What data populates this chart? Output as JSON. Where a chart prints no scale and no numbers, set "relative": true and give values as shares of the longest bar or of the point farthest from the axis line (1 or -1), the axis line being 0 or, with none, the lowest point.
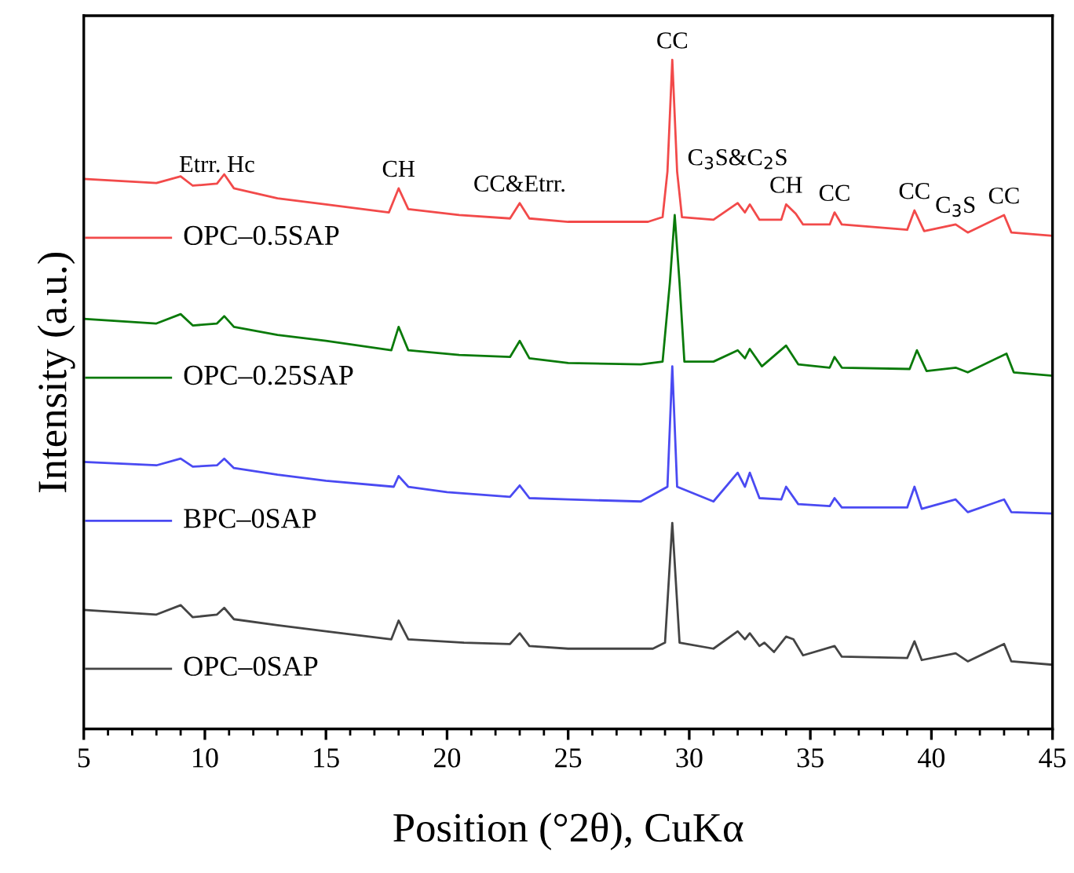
{
  "chart_data": {
    "type": "line",
    "relative": true,
    "xlabel": "Position (°2θ), CuKα",
    "ylabel": "Intensity (a.u.)",
    "xlim": [
      5,
      45
    ],
    "xticks": [
      5,
      10,
      15,
      20,
      25,
      30,
      35,
      40,
      45
    ],
    "grid": false,
    "legend": "left",
    "marker": "none",
    "line_style": "solid",
    "x": [
      5,
      8,
      9,
      9.5,
      10.5,
      10.8,
      11.2,
      13,
      15,
      17.6,
      18,
      18.4,
      20.5,
      22.6,
      23,
      23.4,
      25,
      28.3,
      28.9,
      29.1,
      29.3,
      29.5,
      29.7,
      31,
      32,
      32.3,
      32.5,
      32.9,
      33.8,
      34,
      34.4,
      34.7,
      35.8,
      36,
      36.3,
      39,
      39.3,
      39.7,
      41,
      41.5,
      43,
      43.3,
      45
    ],
    "series": [
      {
        "name": "OPC–0.5SAP",
        "color": "#f24a4a",
        "values": [
          0.822,
          0.816,
          0.826,
          0.812,
          0.815,
          0.829,
          0.808,
          0.793,
          0.784,
          0.772,
          0.808,
          0.777,
          0.768,
          0.763,
          0.786,
          0.763,
          0.758,
          0.758,
          0.765,
          0.833,
          1,
          0.833,
          0.765,
          0.761,
          0.786,
          0.772,
          0.784,
          0.761,
          0.761,
          0.784,
          0.77,
          0.754,
          0.754,
          0.772,
          0.754,
          0.746,
          0.775,
          0.744,
          0.754,
          0.742,
          0.768,
          0.742,
          0.737
        ]
      },
      {
        "name": "OPC–0.25SAP",
        "color": "#0a7a0a",
        "x": [
          5,
          8,
          9,
          9.5,
          10.5,
          10.8,
          11.2,
          13,
          15,
          17.7,
          18,
          18.4,
          20.5,
          22.6,
          23,
          23.4,
          25,
          28,
          28.9,
          29.2,
          29.4,
          29.6,
          29.8,
          31,
          32,
          32.3,
          32.5,
          33,
          34,
          34.5,
          35.8,
          36,
          36.3,
          39.1,
          39.4,
          39.8,
          41,
          41.5,
          43.1,
          43.4,
          45
        ],
        "values": [
          0.613,
          0.606,
          0.62,
          0.603,
          0.606,
          0.617,
          0.601,
          0.589,
          0.58,
          0.566,
          0.601,
          0.566,
          0.559,
          0.556,
          0.58,
          0.554,
          0.547,
          0.545,
          0.549,
          0.667,
          0.768,
          0.667,
          0.549,
          0.549,
          0.566,
          0.554,
          0.568,
          0.542,
          0.573,
          0.545,
          0.54,
          0.556,
          0.54,
          0.538,
          0.566,
          0.535,
          0.54,
          0.533,
          0.561,
          0.533,
          0.528
        ]
      },
      {
        "name": "BPC–0SAP",
        "color": "#4a4af2",
        "x": [
          5,
          8,
          9,
          9.5,
          10.5,
          10.8,
          11.2,
          13,
          15,
          17.8,
          18,
          18.4,
          20,
          22.6,
          23,
          23.4,
          25,
          28,
          29.1,
          29.3,
          29.5,
          31,
          32,
          32.3,
          32.5,
          32.9,
          33.8,
          34,
          34.5,
          35.8,
          36,
          36.3,
          39,
          39.3,
          39.6,
          41,
          41.5,
          43,
          43.3,
          45
        ],
        "values": [
          0.399,
          0.394,
          0.404,
          0.392,
          0.394,
          0.404,
          0.39,
          0.38,
          0.371,
          0.362,
          0.378,
          0.362,
          0.354,
          0.347,
          0.364,
          0.345,
          0.343,
          0.34,
          0.362,
          0.542,
          0.362,
          0.34,
          0.383,
          0.362,
          0.383,
          0.345,
          0.343,
          0.362,
          0.336,
          0.333,
          0.345,
          0.331,
          0.331,
          0.362,
          0.329,
          0.343,
          0.324,
          0.343,
          0.324,
          0.322
        ]
      },
      {
        "name": "OPC–0SAP",
        "color": "#444444",
        "x": [
          5,
          8,
          9,
          9.5,
          10.5,
          10.8,
          11.2,
          13,
          15,
          17.7,
          18,
          18.4,
          20.7,
          22.6,
          23,
          23.4,
          25,
          28.5,
          29,
          29.3,
          29.6,
          31,
          32,
          32.3,
          32.5,
          32.9,
          33.1,
          33.5,
          34,
          34.3,
          34.7,
          36,
          36.3,
          39,
          39.3,
          39.6,
          41,
          41.5,
          43,
          43.3,
          45
        ],
        "values": [
          0.178,
          0.171,
          0.185,
          0.167,
          0.171,
          0.181,
          0.164,
          0.155,
          0.146,
          0.134,
          0.162,
          0.134,
          0.129,
          0.127,
          0.143,
          0.124,
          0.12,
          0.12,
          0.129,
          0.308,
          0.129,
          0.12,
          0.146,
          0.134,
          0.143,
          0.124,
          0.129,
          0.115,
          0.138,
          0.134,
          0.11,
          0.124,
          0.108,
          0.106,
          0.131,
          0.103,
          0.113,
          0.101,
          0.127,
          0.101,
          0.096
        ]
      }
    ],
    "annotations": [
      {
        "text": "Etrr. Hc",
        "x": 10.5,
        "y": 0.815
      },
      {
        "text": "CH",
        "x": 18,
        "y": 0.808
      },
      {
        "text": "CC&Etrr.",
        "x": 23,
        "y": 0.786
      },
      {
        "text": "CC",
        "x": 29.3,
        "y": 1
      },
      {
        "text": "C$_{3}$S&C$_{2}$S",
        "x": 32,
        "y": 0.786
      },
      {
        "text": "CH",
        "x": 34,
        "y": 0.784
      },
      {
        "text": "CC",
        "x": 36,
        "y": 0.772
      },
      {
        "text": "CC",
        "x": 39.3,
        "y": 0.775
      },
      {
        "text": "C$_{3}$S",
        "x": 41,
        "y": 0.754
      },
      {
        "text": "CC",
        "x": 43,
        "y": 0.768
      }
    ]
  }
}
